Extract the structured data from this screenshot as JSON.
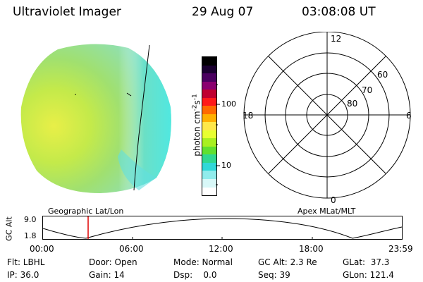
{
  "header": {
    "instrument": "Ultraviolet Imager",
    "date": "29 Aug 07",
    "time": "03:08:08 UT"
  },
  "colorbar": {
    "unit_label": "photon cm",
    "unit_sup1": "-2",
    "unit_mid": "s",
    "unit_sup2": "-1",
    "tick_100": "100",
    "tick_10": "10",
    "colors": [
      "#000000",
      "#1a0030",
      "#4a0060",
      "#8a0070",
      "#c00030",
      "#ff1a1a",
      "#ff6a00",
      "#ffb000",
      "#ffe84a",
      "#e8ff30",
      "#a8f020",
      "#60e030",
      "#30d890",
      "#30d8d8",
      "#90ecec",
      "#d8f8f8",
      "#ffffff"
    ]
  },
  "polar_plot": {
    "labels": {
      "top": "12",
      "bottom": "0",
      "left": "18",
      "right": "6"
    },
    "rings": [
      "60",
      "70",
      "80"
    ]
  },
  "orbit": {
    "y_axis_label": "GC Alt",
    "y_max": "9.0",
    "y_min": "1.8",
    "left_title": "Geographic Lat/Lon",
    "right_title": "Apex  MLat/MLT",
    "x_ticks": [
      "00:00",
      "06:00",
      "12:00",
      "18:00",
      "23:59"
    ],
    "marker_color": "#e00000"
  },
  "info": {
    "filter": "Flt: LBHL",
    "door": "Door: Open",
    "mode": "Mode: Normal",
    "gc_alt": "GC Alt: 2.3 Re",
    "glat": "GLat:  37.3",
    "ip": "IP: 36.0",
    "gain": "Gain: 14",
    "dsp": "Dsp:    0.0",
    "seq": "Seq: 39",
    "glon": "GLon: 121.4"
  }
}
